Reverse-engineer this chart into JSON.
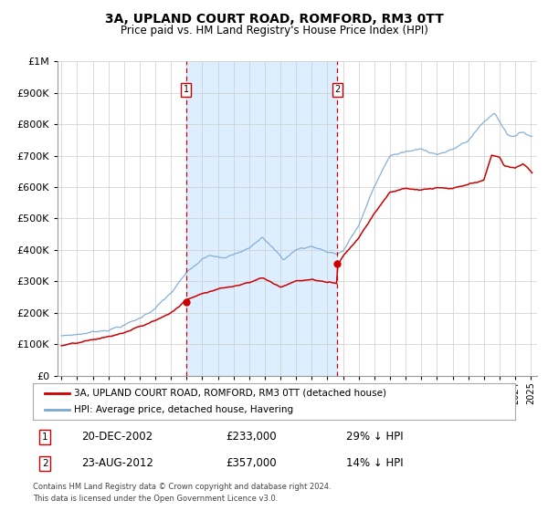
{
  "title": "3A, UPLAND COURT ROAD, ROMFORD, RM3 0TT",
  "subtitle": "Price paid vs. HM Land Registry's House Price Index (HPI)",
  "legend_line1": "3A, UPLAND COURT ROAD, ROMFORD, RM3 0TT (detached house)",
  "legend_line2": "HPI: Average price, detached house, Havering",
  "sale1_date": "20-DEC-2002",
  "sale1_price": 233000,
  "sale1_hpi_pct": "29% ↓ HPI",
  "sale1_year": 2002.97,
  "sale2_date": "23-AUG-2012",
  "sale2_price": 357000,
  "sale2_hpi_pct": "14% ↓ HPI",
  "sale2_year": 2012.64,
  "red_line_color": "#cc0000",
  "blue_line_color": "#7aa8d2",
  "shading_color": "#ddeeff",
  "grid_color": "#cccccc",
  "background_color": "#ffffff",
  "footer_text": "Contains HM Land Registry data © Crown copyright and database right 2024.\nThis data is licensed under the Open Government Licence v3.0.",
  "ylim": [
    0,
    1000000
  ],
  "yticks": [
    0,
    100000,
    200000,
    300000,
    400000,
    500000,
    600000,
    700000,
    800000,
    900000,
    1000000
  ],
  "xlim_start": 1994.75,
  "xlim_end": 2025.4
}
